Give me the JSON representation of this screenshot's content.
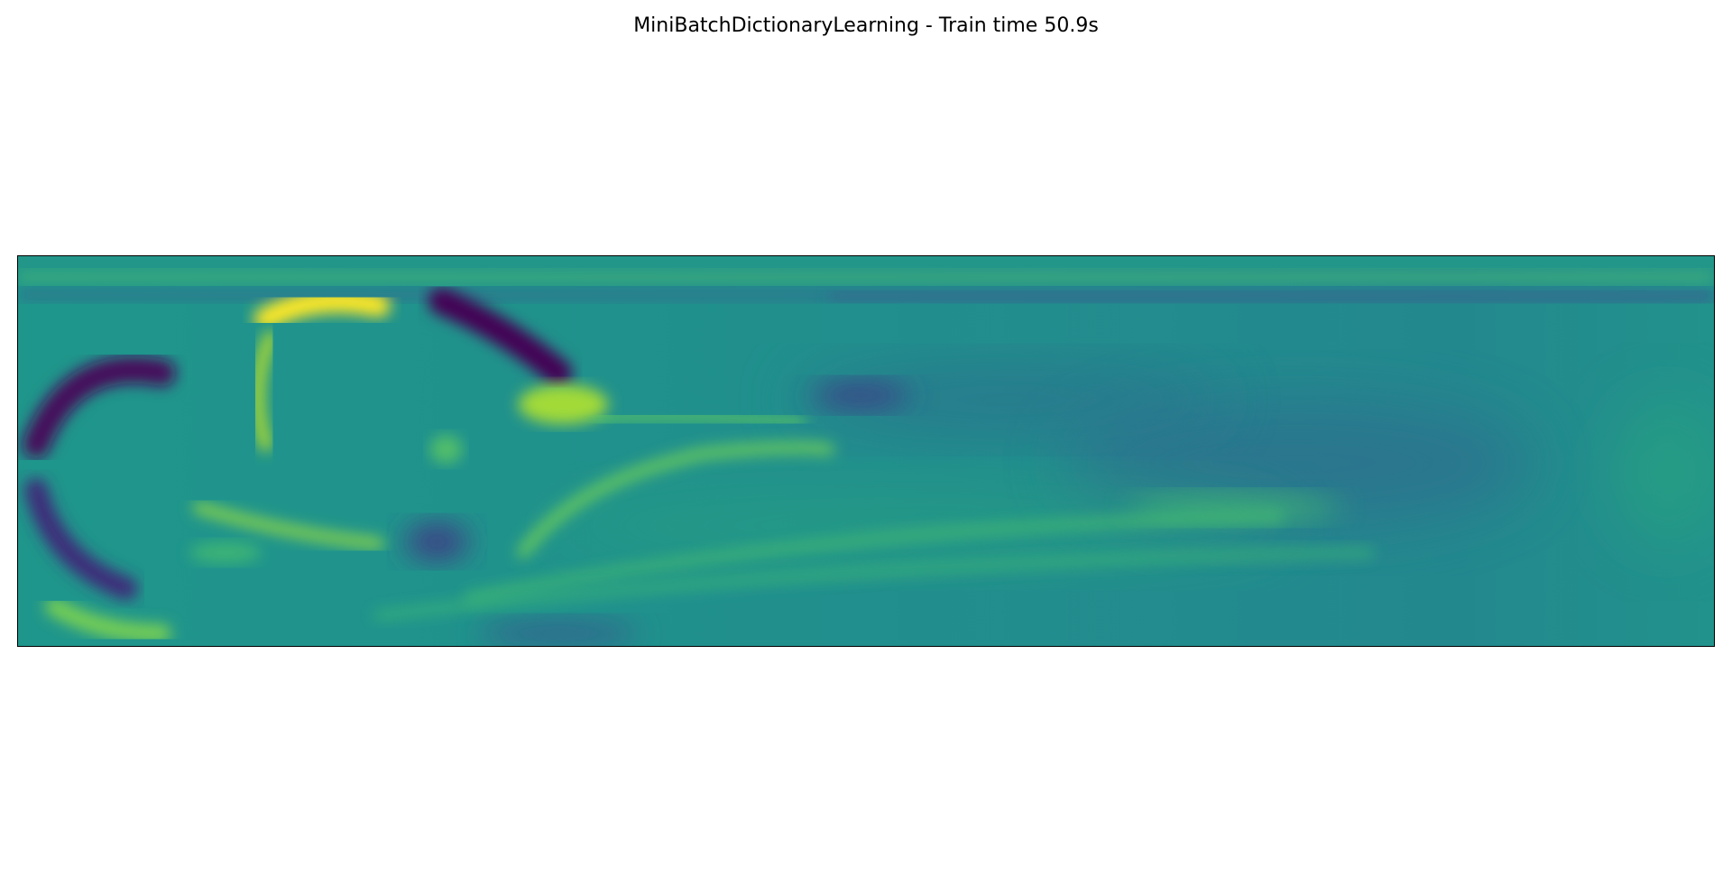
{
  "figure": {
    "title": "MiniBatchDictionaryLearning - Train time 50.9s"
  },
  "chart_data": {
    "type": "heatmap",
    "title": "MiniBatchDictionaryLearning - Train time 50.9s",
    "xlabel": "",
    "ylabel": "",
    "grid": false,
    "ticks": false,
    "colormap": "viridis",
    "colors": {
      "low": "#440154",
      "mid_low": "#3b528b",
      "mid": "#21918c",
      "mid_high": "#5ec962",
      "high": "#fde725"
    }
  }
}
